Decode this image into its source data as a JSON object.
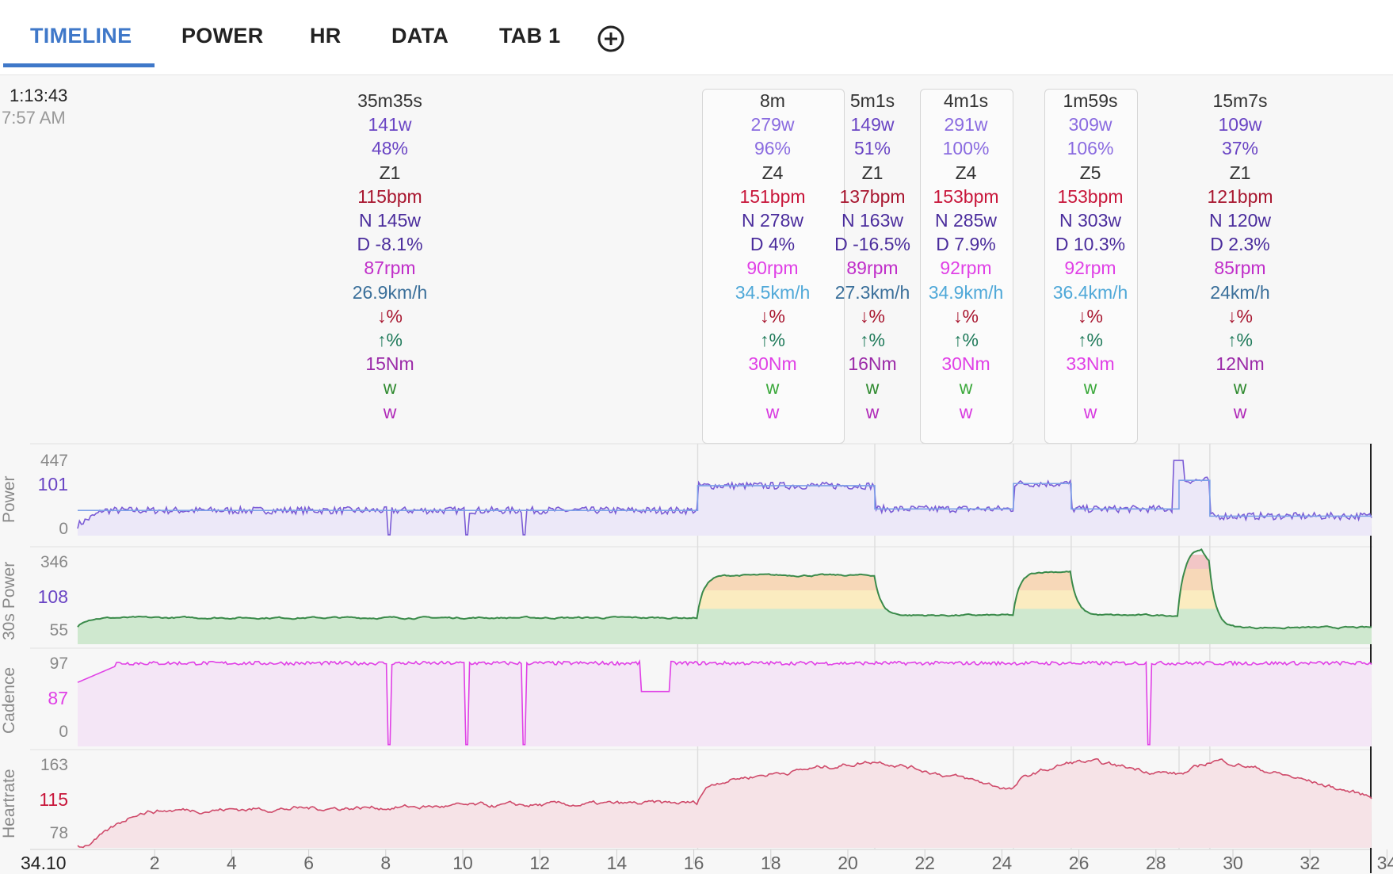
{
  "tabs": [
    {
      "label": "TIMELINE",
      "active": true
    },
    {
      "label": "POWER",
      "active": false
    },
    {
      "label": "HR",
      "active": false
    },
    {
      "label": "DATA",
      "active": false
    },
    {
      "label": "TAB 1",
      "active": false
    }
  ],
  "add_tab_icon": "plus-circle-icon",
  "header": {
    "elapsed": "1:13:43",
    "clock": "7:57 AM"
  },
  "segments": [
    {
      "duration": "35m35s",
      "power": "141w",
      "pct": "48%",
      "zone": "Z1",
      "hr": "115bpm",
      "np": "N 145w",
      "dev": "D -8.1%",
      "cad": "87rpm",
      "speed": "26.9km/h",
      "down": "↓%",
      "up": "↑%",
      "torque": "15Nm",
      "w1": "w",
      "w2": "w",
      "highlight": false
    },
    {
      "duration": "8m",
      "power": "279w",
      "pct": "96%",
      "zone": "Z4",
      "hr": "151bpm",
      "np": "N 278w",
      "dev": "D 4%",
      "cad": "90rpm",
      "speed": "34.5km/h",
      "down": "↓%",
      "up": "↑%",
      "torque": "30Nm",
      "w1": "w",
      "w2": "w",
      "highlight": true
    },
    {
      "duration": "5m1s",
      "power": "149w",
      "pct": "51%",
      "zone": "Z1",
      "hr": "137bpm",
      "np": "N 163w",
      "dev": "D -16.5%",
      "cad": "89rpm",
      "speed": "27.3km/h",
      "down": "↓%",
      "up": "↑%",
      "torque": "16Nm",
      "w1": "w",
      "w2": "w",
      "highlight": false
    },
    {
      "duration": "4m1s",
      "power": "291w",
      "pct": "100%",
      "zone": "Z4",
      "hr": "153bpm",
      "np": "N 285w",
      "dev": "D 7.9%",
      "cad": "92rpm",
      "speed": "34.9km/h",
      "down": "↓%",
      "up": "↑%",
      "torque": "30Nm",
      "w1": "w",
      "w2": "w",
      "highlight": true
    },
    {
      "duration": "1m59s",
      "power": "309w",
      "pct": "106%",
      "zone": "Z5",
      "hr": "153bpm",
      "np": "N 303w",
      "dev": "D 10.3%",
      "cad": "92rpm",
      "speed": "36.4km/h",
      "down": "↓%",
      "up": "↑%",
      "torque": "33Nm",
      "w1": "w",
      "w2": "w",
      "highlight": true
    },
    {
      "duration": "15m7s",
      "power": "109w",
      "pct": "37%",
      "zone": "Z1",
      "hr": "121bpm",
      "np": "N 120w",
      "dev": "D 2.3%",
      "cad": "85rpm",
      "speed": "24km/h",
      "down": "↓%",
      "up": "↑%",
      "torque": "12Nm",
      "w1": "w",
      "w2": "w",
      "highlight": false
    }
  ],
  "panels": [
    {
      "label": "Power",
      "max": "447",
      "current": "101",
      "min": "0",
      "line_color": "#7b5cd6",
      "current_color": "#6a45c4"
    },
    {
      "label": "30s Power",
      "max": "346",
      "current": "108",
      "min": "55",
      "line_color": "#3a8a4a",
      "current_color": "#6a45c4"
    },
    {
      "label": "Cadence",
      "max": "97",
      "current": "87",
      "min": "0",
      "line_color": "#e040e6",
      "current_color": "#e040e6"
    },
    {
      "label": "Heartrate",
      "max": "163",
      "current": "115",
      "min": "78",
      "line_color": "#cf4a6a",
      "current_color": "#c8163a"
    }
  ],
  "x_axis": {
    "cursor_label": "34.10",
    "ticks": [
      "2",
      "4",
      "6",
      "8",
      "10",
      "12",
      "14",
      "16",
      "18",
      "20",
      "22",
      "24",
      "26",
      "28",
      "30",
      "32",
      "34"
    ]
  },
  "chart_data": [
    {
      "type": "line",
      "name": "Power",
      "unit": "w",
      "x_unit": "minutes",
      "ylim": [
        0,
        447
      ],
      "intervals": [
        {
          "start": 0,
          "end": 16.1,
          "avg": 141
        },
        {
          "start": 16.1,
          "end": 20.7,
          "avg": 279
        },
        {
          "start": 20.7,
          "end": 24.3,
          "avg": 149
        },
        {
          "start": 24.3,
          "end": 25.8,
          "avg": 291
        },
        {
          "start": 25.8,
          "end": 28.6,
          "avg": 149
        },
        {
          "start": 28.6,
          "end": 29.4,
          "avg": 309
        },
        {
          "start": 29.4,
          "end": 34.6,
          "avg": 109
        }
      ]
    },
    {
      "type": "area",
      "name": "30s Power",
      "unit": "w",
      "x_unit": "minutes",
      "ylim": [
        55,
        346
      ]
    },
    {
      "type": "line",
      "name": "Cadence",
      "unit": "rpm",
      "x_unit": "minutes",
      "ylim": [
        0,
        97
      ]
    },
    {
      "type": "line",
      "name": "Heartrate",
      "unit": "bpm",
      "x_unit": "minutes",
      "ylim": [
        78,
        163
      ]
    }
  ]
}
